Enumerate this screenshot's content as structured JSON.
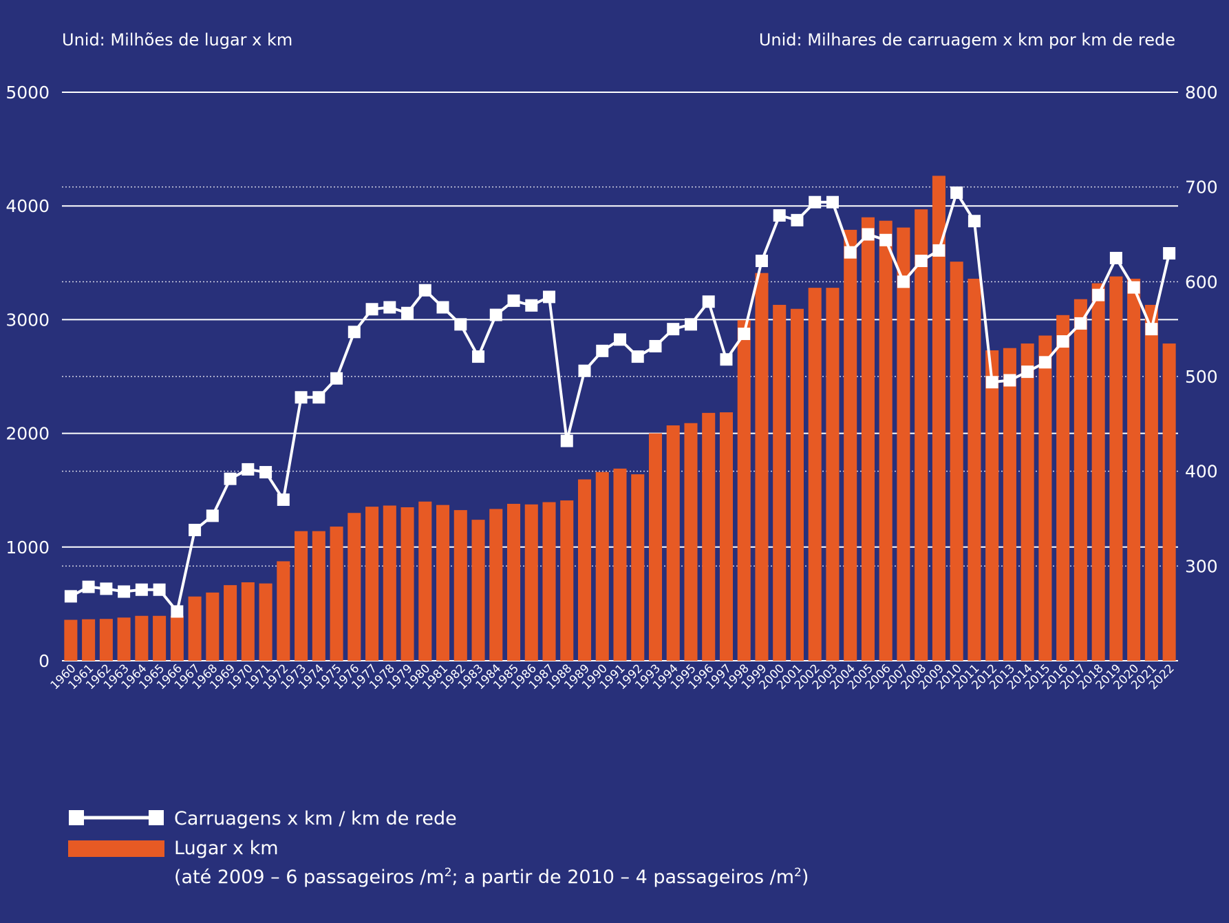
{
  "chart_data": {
    "type": "bar",
    "colors": {
      "background": "#28307a",
      "bar": "#e75a24",
      "line": "#ffffff",
      "grid": "#ffffff"
    },
    "left_axis": {
      "unit_label": "Unid: Milhões de lugar x km",
      "ylim": [
        0,
        5000
      ],
      "ticks": [
        "0",
        "1000",
        "2000",
        "3000",
        "4000",
        "5000"
      ]
    },
    "right_axis": {
      "unit_label": "Unid: Milhares de carruagem x km por km de rede",
      "ylim": [
        200,
        800
      ],
      "ticks": [
        "300",
        "400",
        "500",
        "600",
        "700",
        "800"
      ]
    },
    "grid": true,
    "legend_position": "bottom-left",
    "categories": [
      "1960",
      "1961",
      "1962",
      "1963",
      "1964",
      "1965",
      "1966",
      "1967",
      "1968",
      "1969",
      "1970",
      "1971",
      "1972",
      "1973",
      "1974",
      "1975",
      "1976",
      "1977",
      "1978",
      "1979",
      "1980",
      "1981",
      "1982",
      "1983",
      "1984",
      "1985",
      "1986",
      "1987",
      "1988",
      "1989",
      "1990",
      "1991",
      "1992",
      "1993",
      "1994",
      "1995",
      "1996",
      "1997",
      "1998",
      "1999",
      "2000",
      "2001",
      "2002",
      "2003",
      "2004",
      "2005",
      "2006",
      "2007",
      "2008",
      "2009",
      "2010",
      "2011",
      "2012",
      "2013",
      "2014",
      "2015",
      "2016",
      "2017",
      "2018",
      "2019",
      "2020",
      "2021",
      "2022"
    ],
    "series": [
      {
        "name": "Lugar x km",
        "type": "bar",
        "axis": "left",
        "values": [
          360,
          365,
          368,
          380,
          395,
          395,
          395,
          565,
          600,
          665,
          690,
          680,
          875,
          1140,
          1140,
          1180,
          1300,
          1355,
          1365,
          1350,
          1400,
          1370,
          1325,
          1240,
          1335,
          1380,
          1375,
          1395,
          1410,
          1595,
          1660,
          1690,
          1640,
          2000,
          2070,
          2090,
          2180,
          2185,
          2995,
          3410,
          3130,
          3095,
          3280,
          3280,
          3790,
          3900,
          3870,
          3810,
          3970,
          4265,
          3510,
          3360,
          2730,
          2750,
          2790,
          2860,
          3040,
          3180,
          3320,
          3380,
          3360,
          3130,
          2790
        ]
      },
      {
        "name": "Carruagens x km / km de rede",
        "type": "line",
        "axis": "right",
        "values": [
          268,
          278,
          276,
          273,
          275,
          275,
          252,
          338,
          353,
          392,
          402,
          399,
          370,
          478,
          478,
          498,
          547,
          571,
          573,
          567,
          591,
          573,
          555,
          521,
          565,
          580,
          575,
          584,
          432,
          506,
          527,
          539,
          521,
          532,
          550,
          555,
          579,
          518,
          545,
          622,
          670,
          665,
          684,
          684,
          631,
          650,
          644,
          600,
          622,
          633,
          694,
          664,
          494,
          496,
          505,
          515,
          537,
          556,
          586,
          625,
          594,
          550,
          630
        ]
      }
    ],
    "legend": {
      "line_label": "Carruagens x km / km de rede",
      "bar_label": "Lugar x km",
      "note_main": "(até 2009 – 6 passageiros /m",
      "note_sup1": "2",
      "note_mid": "; a partir de 2010 – 4 passageiros /m",
      "note_sup2": "2",
      "note_end": ")"
    }
  }
}
